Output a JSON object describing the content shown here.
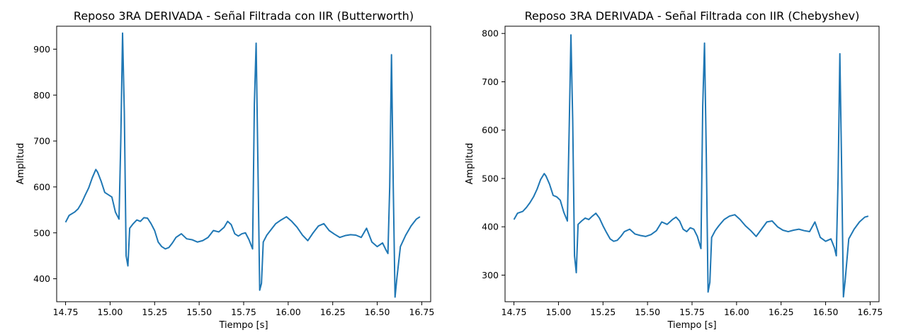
{
  "chart_data": [
    {
      "type": "line",
      "title": "Reposo 3RA DERIVADA - Señal Filtrada con IIR (Butterworth)",
      "xlabel": "Tiempo [s]",
      "ylabel": "Amplitud",
      "xlim": [
        14.7,
        16.8
      ],
      "ylim": [
        350,
        950
      ],
      "xticks": [
        14.75,
        15.0,
        15.25,
        15.5,
        15.75,
        16.0,
        16.25,
        16.5,
        16.75
      ],
      "xtick_labels": [
        "14.75",
        "15.00",
        "15.25",
        "15.50",
        "15.75",
        "16.00",
        "16.25",
        "16.50",
        "16.75"
      ],
      "yticks": [
        400,
        500,
        600,
        700,
        800,
        900
      ],
      "ytick_labels": [
        "400",
        "500",
        "600",
        "700",
        "800",
        "900"
      ],
      "color": "#1f77b4",
      "series": [
        {
          "x": [
            14.75,
            14.77,
            14.8,
            14.82,
            14.84,
            14.86,
            14.88,
            14.9,
            14.92,
            14.93,
            14.95,
            14.97,
            14.99,
            15.01,
            15.03,
            15.05,
            15.06,
            15.07,
            15.08,
            15.09,
            15.1,
            15.11,
            15.13,
            15.15,
            15.17,
            15.19,
            15.21,
            15.23,
            15.25,
            15.27,
            15.29,
            15.31,
            15.33,
            15.35,
            15.37,
            15.4,
            15.43,
            15.46,
            15.49,
            15.52,
            15.55,
            15.58,
            15.61,
            15.64,
            15.66,
            15.68,
            15.7,
            15.72,
            15.74,
            15.76,
            15.78,
            15.8,
            15.81,
            15.82,
            15.83,
            15.84,
            15.85,
            15.86,
            15.88,
            15.9,
            15.93,
            15.96,
            15.99,
            16.02,
            16.05,
            16.08,
            16.11,
            16.14,
            16.17,
            16.2,
            16.23,
            16.26,
            16.29,
            16.32,
            16.35,
            16.38,
            16.41,
            16.44,
            16.47,
            16.5,
            16.53,
            16.55,
            16.56,
            16.57,
            16.58,
            16.59,
            16.6,
            16.61,
            16.63,
            16.66,
            16.69,
            16.72,
            16.74
          ],
          "y": [
            523,
            538,
            545,
            552,
            565,
            582,
            598,
            620,
            638,
            632,
            612,
            588,
            583,
            578,
            545,
            530,
            700,
            935,
            760,
            450,
            428,
            510,
            520,
            528,
            525,
            533,
            532,
            520,
            505,
            480,
            470,
            465,
            468,
            478,
            490,
            498,
            487,
            485,
            480,
            483,
            490,
            505,
            502,
            512,
            525,
            518,
            498,
            493,
            498,
            500,
            485,
            465,
            780,
            913,
            650,
            375,
            390,
            480,
            495,
            505,
            520,
            528,
            535,
            525,
            512,
            495,
            483,
            500,
            515,
            520,
            505,
            497,
            490,
            494,
            496,
            495,
            490,
            510,
            480,
            470,
            478,
            462,
            455,
            600,
            888,
            600,
            360,
            400,
            470,
            495,
            515,
            530,
            535
          ]
        }
      ]
    },
    {
      "type": "line",
      "title": "Reposo 3RA DERIVADA - Señal Filtrada con IIR (Chebyshev)",
      "xlabel": "Tiempo [s]",
      "ylabel": "Amplitud",
      "xlim": [
        14.7,
        16.8
      ],
      "ylim": [
        245,
        815
      ],
      "xticks": [
        14.75,
        15.0,
        15.25,
        15.5,
        15.75,
        16.0,
        16.25,
        16.5,
        16.75
      ],
      "xtick_labels": [
        "14.75",
        "15.00",
        "15.25",
        "15.50",
        "15.75",
        "16.00",
        "16.25",
        "16.50",
        "16.75"
      ],
      "yticks": [
        300,
        400,
        500,
        600,
        700,
        800
      ],
      "ytick_labels": [
        "300",
        "400",
        "500",
        "600",
        "700",
        "800"
      ],
      "color": "#1f77b4",
      "series": [
        {
          "x": [
            14.75,
            14.77,
            14.8,
            14.82,
            14.84,
            14.86,
            14.88,
            14.9,
            14.92,
            14.93,
            14.95,
            14.97,
            14.99,
            15.01,
            15.03,
            15.05,
            15.06,
            15.07,
            15.08,
            15.09,
            15.1,
            15.11,
            15.13,
            15.15,
            15.17,
            15.19,
            15.21,
            15.23,
            15.25,
            15.27,
            15.29,
            15.31,
            15.33,
            15.35,
            15.37,
            15.4,
            15.43,
            15.46,
            15.49,
            15.52,
            15.55,
            15.58,
            15.61,
            15.64,
            15.66,
            15.68,
            15.7,
            15.72,
            15.74,
            15.76,
            15.78,
            15.8,
            15.81,
            15.82,
            15.83,
            15.84,
            15.85,
            15.86,
            15.88,
            15.9,
            15.93,
            15.96,
            15.99,
            16.02,
            16.05,
            16.08,
            16.11,
            16.14,
            16.17,
            16.2,
            16.23,
            16.26,
            16.29,
            16.32,
            16.35,
            16.38,
            16.41,
            16.44,
            16.47,
            16.5,
            16.53,
            16.55,
            16.56,
            16.57,
            16.58,
            16.59,
            16.6,
            16.61,
            16.63,
            16.66,
            16.69,
            16.72,
            16.74
          ],
          "y": [
            415,
            428,
            432,
            440,
            450,
            462,
            478,
            498,
            510,
            505,
            488,
            465,
            462,
            455,
            430,
            412,
            600,
            797,
            620,
            340,
            305,
            405,
            412,
            418,
            415,
            422,
            428,
            418,
            402,
            388,
            375,
            370,
            372,
            380,
            390,
            395,
            385,
            382,
            380,
            384,
            392,
            410,
            405,
            415,
            420,
            412,
            395,
            390,
            398,
            395,
            380,
            355,
            650,
            780,
            550,
            265,
            285,
            378,
            392,
            402,
            415,
            422,
            425,
            415,
            402,
            392,
            380,
            395,
            410,
            412,
            400,
            393,
            390,
            393,
            395,
            392,
            390,
            410,
            378,
            370,
            375,
            356,
            340,
            500,
            758,
            520,
            255,
            290,
            375,
            395,
            410,
            420,
            422
          ]
        }
      ]
    }
  ]
}
